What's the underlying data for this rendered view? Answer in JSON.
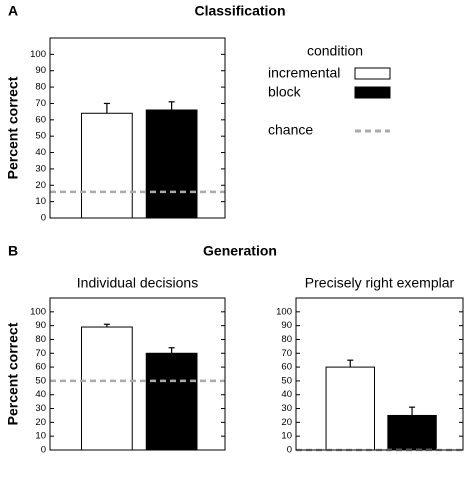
{
  "panels": [
    {
      "label": "A",
      "title": "Classification"
    },
    {
      "label": "B",
      "title": "Generation"
    }
  ],
  "legend": {
    "title": "condition",
    "entries": [
      "incremental",
      "block",
      "chance"
    ]
  },
  "bar_colors": [
    "#ffffff",
    "#000000"
  ],
  "chance_color": "#aaaaaa",
  "chart_data": [
    {
      "type": "bar",
      "ylabel": "Percent correct",
      "values": [
        64,
        66
      ],
      "errors": [
        6,
        5
      ],
      "chance": 16,
      "ylim": [
        0,
        110
      ],
      "yticks": [
        0,
        10,
        20,
        30,
        40,
        50,
        60,
        70,
        80,
        90,
        100
      ]
    },
    {
      "type": "bar",
      "title": "Individual decisions",
      "ylabel": "Percent correct",
      "values": [
        89,
        70
      ],
      "errors": [
        2,
        4
      ],
      "chance": 50,
      "ylim": [
        0,
        110
      ],
      "yticks": [
        0,
        10,
        20,
        30,
        40,
        50,
        60,
        70,
        80,
        90,
        100
      ]
    },
    {
      "type": "bar",
      "title": "Precisely right exemplar",
      "values": [
        60,
        25
      ],
      "errors": [
        5,
        6
      ],
      "chance": 0,
      "ylim": [
        0,
        110
      ],
      "yticks": [
        0,
        10,
        20,
        30,
        40,
        50,
        60,
        70,
        80,
        90,
        100
      ]
    }
  ]
}
